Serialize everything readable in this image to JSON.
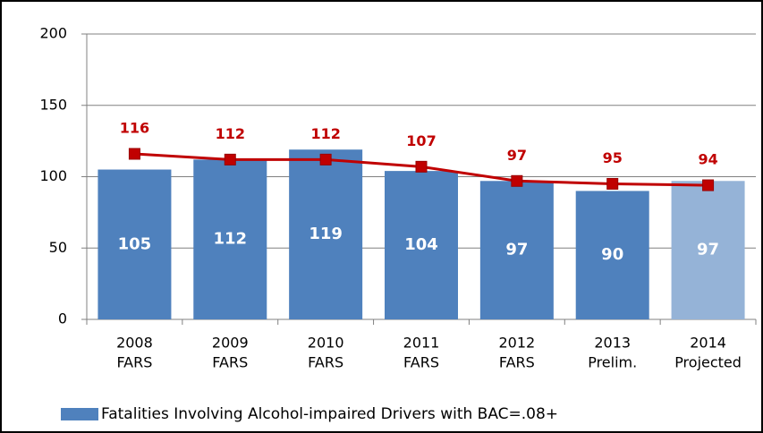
{
  "chart_data": {
    "type": "bar",
    "categories": [
      [
        "2008",
        "FARS"
      ],
      [
        "2009",
        "FARS"
      ],
      [
        "2010",
        "FARS"
      ],
      [
        "2011",
        "FARS"
      ],
      [
        "2012",
        "FARS"
      ],
      [
        "2013",
        "Prelim."
      ],
      [
        "2014",
        "Projected"
      ]
    ],
    "series": [
      {
        "name": "Fatalities Involving Alcohol-impaired Drivers with BAC=.08+",
        "type": "bar",
        "color": "#4f81bd",
        "colors": [
          "#4f81bd",
          "#4f81bd",
          "#4f81bd",
          "#4f81bd",
          "#4f81bd",
          "#4f81bd",
          "#95b3d7"
        ],
        "values": [
          105,
          112,
          119,
          104,
          97,
          90,
          97
        ]
      },
      {
        "type": "line",
        "color": "#c00000",
        "values": [
          116,
          112,
          112,
          107,
          97,
          95,
          94
        ]
      }
    ],
    "ylim": [
      0,
      200
    ],
    "yticks": [
      0,
      50,
      100,
      150,
      200
    ],
    "grid": true,
    "legend": "bottom"
  }
}
